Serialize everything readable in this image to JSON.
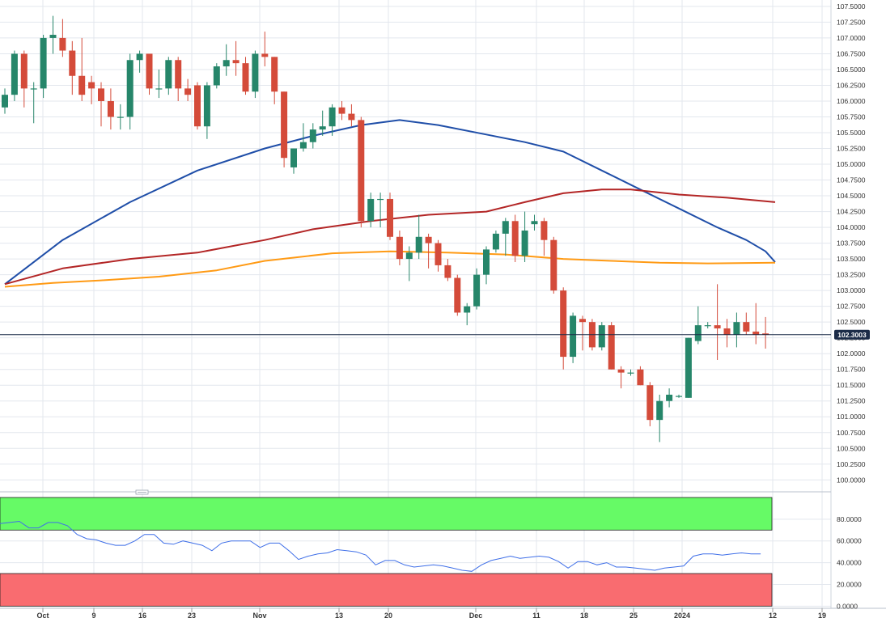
{
  "chart_data": [
    {
      "type": "candlestick",
      "name": "price-panel",
      "y_ticks": [
        "100.0000",
        "100.2500",
        "100.5000",
        "100.7500",
        "101.0000",
        "101.2500",
        "101.5000",
        "101.7500",
        "102.0000",
        "102.2500",
        "102.5000",
        "102.7500",
        "103.0000",
        "103.2500",
        "103.5000",
        "103.7500",
        "104.0000",
        "104.2500",
        "104.5000",
        "104.7500",
        "105.0000",
        "105.2500",
        "105.5000",
        "105.7500",
        "106.0000",
        "106.2500",
        "106.5000",
        "106.7500",
        "107.0000",
        "107.2500",
        "107.5000"
      ],
      "ylim": [
        99.85,
        107.55
      ],
      "x_ticks": [
        "Oct",
        "9",
        "16",
        "23",
        "Nov",
        "13",
        "20",
        "Dec",
        "11",
        "18",
        "25",
        "2024",
        "12",
        "19"
      ],
      "last_price": {
        "value": 102.3003,
        "label": "102.3003"
      },
      "candles": [
        {
          "o": 105.9,
          "h": 106.2,
          "l": 105.8,
          "c": 106.1
        },
        {
          "o": 106.1,
          "h": 106.8,
          "l": 106.0,
          "c": 106.75
        },
        {
          "o": 106.75,
          "h": 106.8,
          "l": 105.9,
          "c": 106.2
        },
        {
          "o": 106.2,
          "h": 106.3,
          "l": 105.65,
          "c": 106.2
        },
        {
          "o": 106.2,
          "h": 107.05,
          "l": 106.05,
          "c": 107.0
        },
        {
          "o": 107.0,
          "h": 107.35,
          "l": 106.75,
          "c": 107.05
        },
        {
          "o": 107.0,
          "h": 107.3,
          "l": 106.7,
          "c": 106.8
        },
        {
          "o": 106.8,
          "h": 106.95,
          "l": 106.1,
          "c": 106.4
        },
        {
          "o": 106.4,
          "h": 107.0,
          "l": 106.0,
          "c": 106.1
        },
        {
          "o": 106.3,
          "h": 106.4,
          "l": 105.95,
          "c": 106.2
        },
        {
          "o": 106.2,
          "h": 106.3,
          "l": 105.6,
          "c": 106.0
        },
        {
          "o": 106.0,
          "h": 106.2,
          "l": 105.55,
          "c": 105.75
        },
        {
          "o": 105.75,
          "h": 105.95,
          "l": 105.55,
          "c": 105.75
        },
        {
          "o": 105.75,
          "h": 106.75,
          "l": 105.55,
          "c": 106.65
        },
        {
          "o": 106.65,
          "h": 106.8,
          "l": 106.45,
          "c": 106.75
        },
        {
          "o": 106.75,
          "h": 106.75,
          "l": 106.1,
          "c": 106.2
        },
        {
          "o": 106.2,
          "h": 106.5,
          "l": 106.05,
          "c": 106.2
        },
        {
          "o": 106.2,
          "h": 106.7,
          "l": 106.1,
          "c": 106.65
        },
        {
          "o": 106.65,
          "h": 106.7,
          "l": 106.0,
          "c": 106.2
        },
        {
          "o": 106.2,
          "h": 106.35,
          "l": 106.0,
          "c": 106.1
        },
        {
          "o": 106.25,
          "h": 106.3,
          "l": 105.55,
          "c": 105.6
        },
        {
          "o": 105.6,
          "h": 106.3,
          "l": 105.4,
          "c": 106.25
        },
        {
          "o": 106.25,
          "h": 106.6,
          "l": 106.2,
          "c": 106.55
        },
        {
          "o": 106.55,
          "h": 106.9,
          "l": 106.4,
          "c": 106.65
        },
        {
          "o": 106.65,
          "h": 106.95,
          "l": 106.4,
          "c": 106.6
        },
        {
          "o": 106.6,
          "h": 106.7,
          "l": 106.1,
          "c": 106.15
        },
        {
          "o": 106.15,
          "h": 106.8,
          "l": 106.05,
          "c": 106.75
        },
        {
          "o": 106.75,
          "h": 107.1,
          "l": 106.55,
          "c": 106.7
        },
        {
          "o": 106.7,
          "h": 106.7,
          "l": 105.95,
          "c": 106.15
        },
        {
          "o": 106.15,
          "h": 106.15,
          "l": 104.95,
          "c": 105.1
        },
        {
          "o": 104.95,
          "h": 105.25,
          "l": 104.85,
          "c": 105.25
        },
        {
          "o": 105.25,
          "h": 105.65,
          "l": 105.2,
          "c": 105.35
        },
        {
          "o": 105.35,
          "h": 105.65,
          "l": 105.25,
          "c": 105.55
        },
        {
          "o": 105.55,
          "h": 105.85,
          "l": 105.45,
          "c": 105.6
        },
        {
          "o": 105.6,
          "h": 105.95,
          "l": 105.45,
          "c": 105.9
        },
        {
          "o": 105.9,
          "h": 106.0,
          "l": 105.7,
          "c": 105.8
        },
        {
          "o": 105.8,
          "h": 105.95,
          "l": 105.6,
          "c": 105.7
        },
        {
          "o": 105.7,
          "h": 105.75,
          "l": 104.0,
          "c": 104.1
        },
        {
          "o": 104.1,
          "h": 104.55,
          "l": 104.0,
          "c": 104.45
        },
        {
          "o": 104.45,
          "h": 104.55,
          "l": 104.0,
          "c": 104.45
        },
        {
          "o": 104.45,
          "h": 104.55,
          "l": 103.8,
          "c": 103.85
        },
        {
          "o": 103.85,
          "h": 103.95,
          "l": 103.4,
          "c": 103.5
        },
        {
          "o": 103.5,
          "h": 103.7,
          "l": 103.15,
          "c": 103.6
        },
        {
          "o": 103.6,
          "h": 104.2,
          "l": 103.5,
          "c": 103.85
        },
        {
          "o": 103.85,
          "h": 103.9,
          "l": 103.35,
          "c": 103.75
        },
        {
          "o": 103.75,
          "h": 103.8,
          "l": 103.3,
          "c": 103.4
        },
        {
          "o": 103.4,
          "h": 103.5,
          "l": 103.15,
          "c": 103.2
        },
        {
          "o": 103.2,
          "h": 103.25,
          "l": 102.6,
          "c": 102.65
        },
        {
          "o": 102.65,
          "h": 102.8,
          "l": 102.45,
          "c": 102.75
        },
        {
          "o": 102.75,
          "h": 103.35,
          "l": 102.7,
          "c": 103.25
        },
        {
          "o": 103.25,
          "h": 103.7,
          "l": 103.1,
          "c": 103.65
        },
        {
          "o": 103.65,
          "h": 103.95,
          "l": 103.6,
          "c": 103.9
        },
        {
          "o": 103.9,
          "h": 104.15,
          "l": 103.55,
          "c": 104.1
        },
        {
          "o": 104.1,
          "h": 104.2,
          "l": 103.45,
          "c": 103.55
        },
        {
          "o": 103.55,
          "h": 104.25,
          "l": 103.45,
          "c": 103.95
        },
        {
          "o": 104.05,
          "h": 104.2,
          "l": 103.95,
          "c": 104.1
        },
        {
          "o": 104.1,
          "h": 104.15,
          "l": 103.55,
          "c": 103.8
        },
        {
          "o": 103.8,
          "h": 103.85,
          "l": 102.95,
          "c": 103.0
        },
        {
          "o": 103.0,
          "h": 103.05,
          "l": 101.75,
          "c": 101.95
        },
        {
          "o": 101.95,
          "h": 102.65,
          "l": 101.85,
          "c": 102.6
        },
        {
          "o": 102.55,
          "h": 102.6,
          "l": 102.05,
          "c": 102.5
        },
        {
          "o": 102.5,
          "h": 102.55,
          "l": 102.05,
          "c": 102.1
        },
        {
          "o": 102.1,
          "h": 102.5,
          "l": 102.05,
          "c": 102.45
        },
        {
          "o": 102.45,
          "h": 102.5,
          "l": 101.75,
          "c": 101.75
        },
        {
          "o": 101.75,
          "h": 101.8,
          "l": 101.45,
          "c": 101.7
        },
        {
          "o": 101.7,
          "h": 101.75,
          "l": 101.65,
          "c": 101.7
        },
        {
          "o": 101.75,
          "h": 101.8,
          "l": 101.5,
          "c": 101.5
        },
        {
          "o": 101.5,
          "h": 101.55,
          "l": 100.85,
          "c": 100.95
        },
        {
          "o": 100.95,
          "h": 101.35,
          "l": 100.6,
          "c": 101.25
        },
        {
          "o": 101.25,
          "h": 101.45,
          "l": 101.15,
          "c": 101.35
        },
        {
          "o": 101.32,
          "h": 101.35,
          "l": 101.3,
          "c": 101.33
        },
        {
          "o": 101.3,
          "h": 102.25,
          "l": 101.3,
          "c": 102.25
        },
        {
          "o": 102.2,
          "h": 102.75,
          "l": 102.15,
          "c": 102.45
        },
        {
          "o": 102.45,
          "h": 102.5,
          "l": 102.4,
          "c": 102.45
        },
        {
          "o": 102.45,
          "h": 103.1,
          "l": 101.9,
          "c": 102.4
        },
        {
          "o": 102.4,
          "h": 102.55,
          "l": 102.1,
          "c": 102.3
        },
        {
          "o": 102.3,
          "h": 102.65,
          "l": 102.1,
          "c": 102.5
        },
        {
          "o": 102.5,
          "h": 102.65,
          "l": 102.3,
          "c": 102.35
        },
        {
          "o": 102.35,
          "h": 102.8,
          "l": 102.15,
          "c": 102.3
        },
        {
          "o": 102.32,
          "h": 102.58,
          "l": 102.08,
          "c": 102.3
        }
      ],
      "series": [
        {
          "name": "",
          "color": "#1f4ea8",
          "points": [
            [
              0,
              103.1
            ],
            [
              6,
              103.8
            ],
            [
              13,
              104.4
            ],
            [
              20,
              104.9
            ],
            [
              27,
              105.25
            ],
            [
              32,
              105.45
            ],
            [
              37,
              105.62
            ],
            [
              41,
              105.7
            ],
            [
              45,
              105.62
            ],
            [
              50,
              105.47
            ],
            [
              54,
              105.35
            ],
            [
              58,
              105.2
            ],
            [
              62,
              104.9
            ],
            [
              66,
              104.6
            ],
            [
              70,
              104.3
            ],
            [
              74,
              104.0
            ],
            [
              77,
              103.8
            ],
            [
              79,
              103.62
            ],
            [
              80,
              103.45
            ]
          ]
        },
        {
          "name": "",
          "color": "#b32626",
          "points": [
            [
              0,
              103.1
            ],
            [
              6,
              103.35
            ],
            [
              13,
              103.5
            ],
            [
              20,
              103.6
            ],
            [
              27,
              103.8
            ],
            [
              32,
              103.97
            ],
            [
              38,
              104.1
            ],
            [
              44,
              104.2
            ],
            [
              50,
              104.25
            ],
            [
              54,
              104.4
            ],
            [
              58,
              104.54
            ],
            [
              62,
              104.6
            ],
            [
              65,
              104.6
            ],
            [
              70,
              104.52
            ],
            [
              75,
              104.47
            ],
            [
              80,
              104.4
            ]
          ]
        },
        {
          "name": "",
          "color": "#ff9a14",
          "points": [
            [
              0,
              103.06
            ],
            [
              5,
              103.12
            ],
            [
              10,
              103.16
            ],
            [
              16,
              103.22
            ],
            [
              22,
              103.32
            ],
            [
              27,
              103.47
            ],
            [
              34,
              103.59
            ],
            [
              40,
              103.62
            ],
            [
              46,
              103.6
            ],
            [
              52,
              103.57
            ],
            [
              58,
              103.5
            ],
            [
              63,
              103.47
            ],
            [
              68,
              103.44
            ],
            [
              73,
              103.43
            ],
            [
              80,
              103.44
            ]
          ]
        }
      ]
    },
    {
      "type": "line",
      "name": "oscillator-panel",
      "y_ticks": [
        "0.0000",
        "20.0000",
        "40.0000",
        "60.0000",
        "80.0000"
      ],
      "ylim": [
        -2,
        100
      ],
      "overbought_band": [
        70,
        100
      ],
      "oversold_band": [
        0,
        30
      ],
      "series": [
        {
          "name": "",
          "color": "#3f6fe8",
          "values": [
            76,
            77,
            78,
            72,
            72,
            77,
            77,
            74,
            66,
            62,
            61,
            58,
            56,
            56,
            60,
            66,
            66,
            58,
            57,
            60,
            58,
            56,
            51,
            58,
            60,
            60,
            60,
            54,
            58,
            58,
            51,
            43,
            46,
            48,
            49,
            52,
            51,
            50,
            47,
            38,
            42,
            42,
            38,
            36,
            37,
            38,
            37,
            35,
            33,
            32,
            38,
            42,
            44,
            46,
            44,
            45,
            46,
            45,
            41,
            35,
            41,
            41,
            38,
            40,
            36,
            36,
            35,
            34,
            33,
            35,
            36,
            37,
            46,
            48,
            48,
            47,
            48,
            49,
            48,
            48
          ]
        }
      ],
      "colors": {
        "overbought": "#66fa66",
        "oversold": "#f96c70"
      }
    }
  ],
  "colors": {
    "bull": "#26866a",
    "bear": "#d44b3a",
    "price_line": "#1c2c48",
    "last_price_bg": "#1c2c48",
    "grid": "#e3e7ee",
    "axis_text": "#333333"
  }
}
